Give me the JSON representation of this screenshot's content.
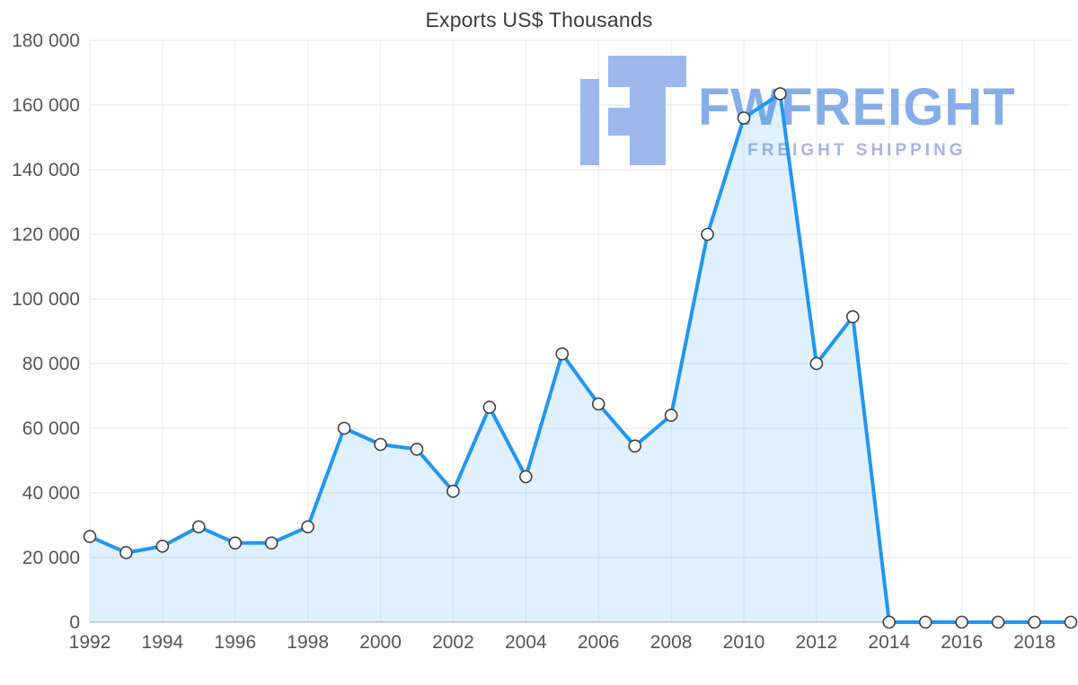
{
  "chart_data": {
    "type": "area",
    "title": "Exports US$ Thousands",
    "x": [
      1992,
      1993,
      1994,
      1995,
      1996,
      1997,
      1998,
      1999,
      2000,
      2001,
      2002,
      2003,
      2004,
      2005,
      2006,
      2007,
      2008,
      2009,
      2010,
      2011,
      2012,
      2013,
      2014,
      2015,
      2016,
      2017,
      2018,
      2019
    ],
    "series": [
      {
        "name": "Exports US$ Thousands",
        "values": [
          26500,
          21500,
          23500,
          29500,
          24500,
          24500,
          29500,
          60000,
          55000,
          53500,
          40500,
          66500,
          45000,
          83000,
          67500,
          54500,
          64000,
          120000,
          156000,
          163500,
          80000,
          94500,
          0,
          0,
          0,
          0,
          0,
          0
        ]
      }
    ],
    "x_ticks": [
      1992,
      1994,
      1996,
      1998,
      2000,
      2002,
      2004,
      2006,
      2008,
      2010,
      2012,
      2014,
      2016,
      2018
    ],
    "ylim": [
      0,
      180000
    ],
    "y_tick_step": 20000,
    "y_tick_labels": [
      "0",
      "20 000",
      "40 000",
      "60 000",
      "80 000",
      "100 000",
      "120 000",
      "140 000",
      "160 000",
      "180 000"
    ],
    "grid": true,
    "legend": "none",
    "xlabel": "",
    "ylabel": "",
    "line_color": "#2196f3",
    "area_fill_color": "rgba(33,150,243,0.14)",
    "marker_fill": "#ffffff",
    "marker_stroke": "#404040",
    "gridline_color": "#e4e4e4",
    "vertical_gridline_color": "#ededed",
    "axis_line_color": "#a8a8a8"
  },
  "watermark": {
    "brand": "FWFREIGHT",
    "tagline": "FREIGHT SHIPPING",
    "logo_color": "#9db9ec",
    "brand_color": "#84ade9",
    "tagline_color": "#a9b3e6"
  }
}
